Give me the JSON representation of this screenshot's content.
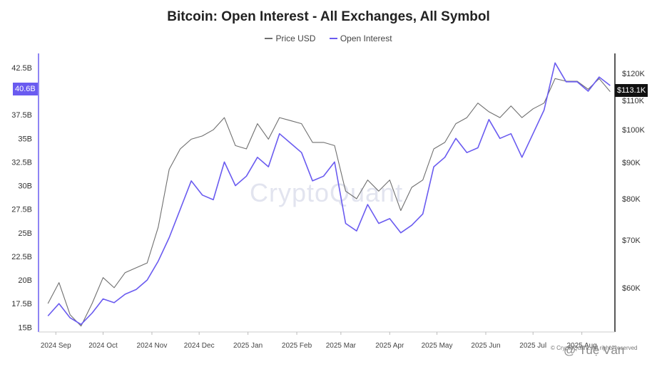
{
  "title": "Bitcoin: Open Interest - All Exchanges, All Symbol",
  "legend": [
    {
      "label": "Price USD",
      "color": "#6f6f6f"
    },
    {
      "label": "Open Interest",
      "color": "#6a5bf0"
    }
  ],
  "watermark": "CryptoQuant",
  "copyright": "© CryptoQuant. All rights reserved",
  "credit": "@ Tuệ Văn",
  "badges": {
    "left_value": "40.6B",
    "right_value": "$113.1K"
  },
  "chart_data": {
    "type": "line",
    "title": "Bitcoin: Open Interest - All Exchanges, All Symbol",
    "x_tick_labels": [
      "2024 Sep",
      "2024 Oct",
      "2024 Nov",
      "2024 Dec",
      "2025 Jan",
      "2025 Feb",
      "2025 Mar",
      "2025 Apr",
      "2025 May",
      "2025 Jun",
      "2025 Jul",
      "2025 Aug"
    ],
    "y_left": {
      "ticks": [
        15,
        17.5,
        20,
        22.5,
        25,
        27.5,
        30,
        32.5,
        35,
        37.5,
        40,
        42.5
      ],
      "tick_labels": [
        "15B",
        "17.5B",
        "20B",
        "22.5B",
        "25B",
        "27.5B",
        "30B",
        "32.5B",
        "35B",
        "37.5B",
        "40B",
        "42.5B"
      ],
      "range": [
        14.5,
        44.0
      ]
    },
    "y_right": {
      "scale": "log",
      "ticks": [
        60,
        70,
        80,
        90,
        100,
        110,
        120
      ],
      "tick_labels": [
        "$60K",
        "$70K",
        "$80K",
        "$90K",
        "$100K",
        "$110K",
        "$120K"
      ],
      "range": [
        52,
        128
      ]
    },
    "series": [
      {
        "name": "Price USD",
        "axis": "right",
        "color": "#6f6f6f",
        "x": [
          "2024-08-27",
          "2024-09-03",
          "2024-09-10",
          "2024-09-17",
          "2024-09-24",
          "2024-10-01",
          "2024-10-08",
          "2024-10-15",
          "2024-10-22",
          "2024-10-29",
          "2024-11-05",
          "2024-11-12",
          "2024-11-19",
          "2024-11-26",
          "2024-12-03",
          "2024-12-10",
          "2024-12-17",
          "2024-12-24",
          "2024-12-31",
          "2025-01-07",
          "2025-01-14",
          "2025-01-21",
          "2025-01-28",
          "2025-02-04",
          "2025-02-11",
          "2025-02-18",
          "2025-02-25",
          "2025-03-04",
          "2025-03-11",
          "2025-03-18",
          "2025-03-25",
          "2025-04-01",
          "2025-04-08",
          "2025-04-15",
          "2025-04-22",
          "2025-04-29",
          "2025-05-06",
          "2025-05-13",
          "2025-05-20",
          "2025-05-27",
          "2025-06-03",
          "2025-06-10",
          "2025-06-17",
          "2025-06-24",
          "2025-07-01",
          "2025-07-08",
          "2025-07-15",
          "2025-07-22",
          "2025-07-29",
          "2025-08-05",
          "2025-08-12",
          "2025-08-19"
        ],
        "values": [
          57,
          61,
          55,
          53,
          57,
          62,
          60,
          63,
          64,
          65,
          73,
          88,
          94,
          97,
          98,
          100,
          104,
          95,
          94,
          102,
          97,
          104,
          103,
          102,
          96,
          96,
          95,
          82,
          80,
          85,
          82,
          85,
          77,
          83,
          85,
          94,
          96,
          102,
          104,
          109,
          106,
          104,
          108,
          104,
          107,
          109,
          118,
          117,
          117,
          114,
          118,
          113.1
        ]
      },
      {
        "name": "Open Interest",
        "axis": "left",
        "color": "#6a5bf0",
        "x": [
          "2024-08-27",
          "2024-09-03",
          "2024-09-10",
          "2024-09-17",
          "2024-09-24",
          "2024-10-01",
          "2024-10-08",
          "2024-10-15",
          "2024-10-22",
          "2024-10-29",
          "2024-11-05",
          "2024-11-12",
          "2024-11-19",
          "2024-11-26",
          "2024-12-03",
          "2024-12-10",
          "2024-12-17",
          "2024-12-24",
          "2024-12-31",
          "2025-01-07",
          "2025-01-14",
          "2025-01-21",
          "2025-01-28",
          "2025-02-04",
          "2025-02-11",
          "2025-02-18",
          "2025-02-25",
          "2025-03-04",
          "2025-03-11",
          "2025-03-18",
          "2025-03-25",
          "2025-04-01",
          "2025-04-08",
          "2025-04-15",
          "2025-04-22",
          "2025-04-29",
          "2025-05-06",
          "2025-05-13",
          "2025-05-20",
          "2025-05-27",
          "2025-06-03",
          "2025-06-10",
          "2025-06-17",
          "2025-06-24",
          "2025-07-01",
          "2025-07-08",
          "2025-07-15",
          "2025-07-22",
          "2025-07-29",
          "2025-08-05",
          "2025-08-12",
          "2025-08-19"
        ],
        "values": [
          16.2,
          17.5,
          16.0,
          15.3,
          16.5,
          18.0,
          17.6,
          18.5,
          19.0,
          20.0,
          22.0,
          24.5,
          27.5,
          30.5,
          29.0,
          28.5,
          32.5,
          30.0,
          31.0,
          33.0,
          32.0,
          35.5,
          34.5,
          33.5,
          30.5,
          31.0,
          32.5,
          26.0,
          25.2,
          28.0,
          26.0,
          26.5,
          25.0,
          25.8,
          27.0,
          32.0,
          33.0,
          35.0,
          33.5,
          34.0,
          37.0,
          35.0,
          35.5,
          33.0,
          35.5,
          38.0,
          43.0,
          41.0,
          41.0,
          40.0,
          41.5,
          40.6
        ]
      }
    ],
    "grid": false,
    "legend_position": "top"
  }
}
